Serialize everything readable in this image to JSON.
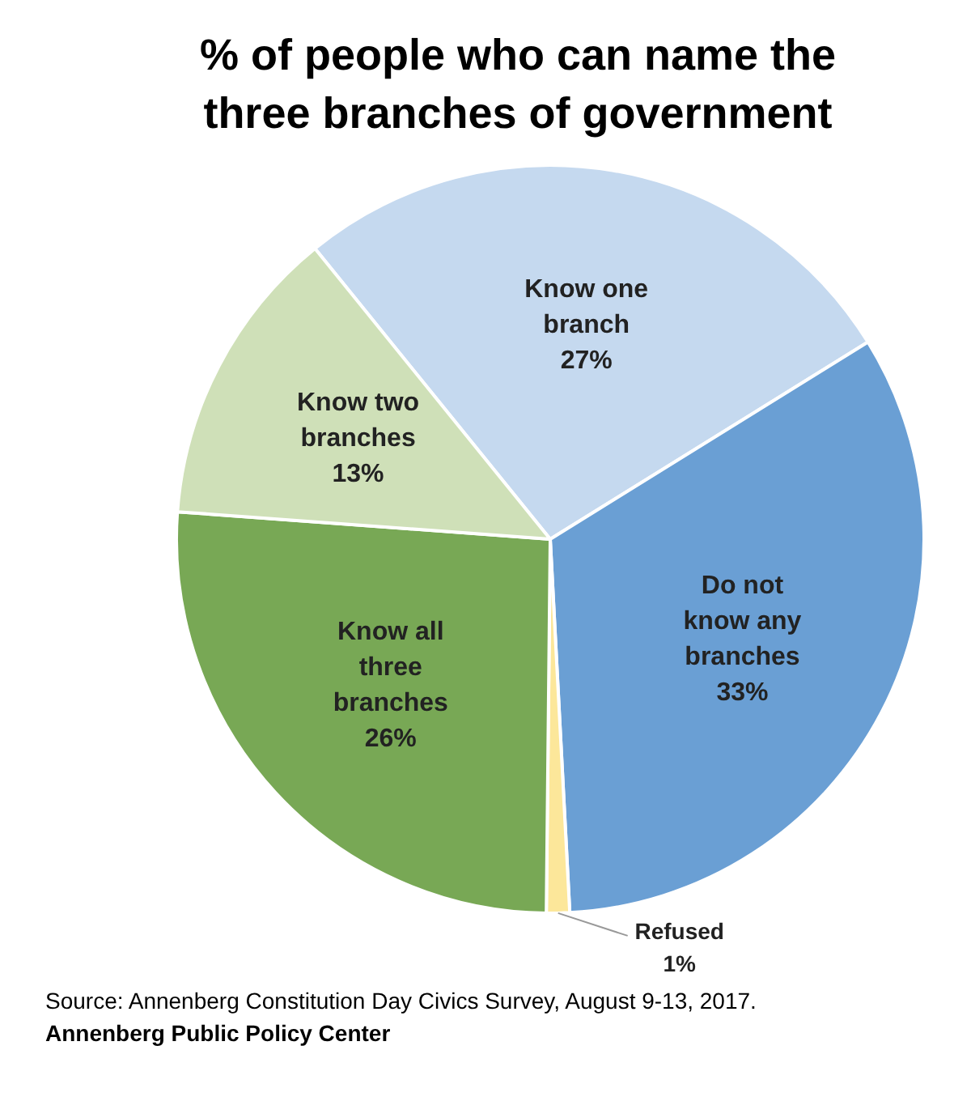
{
  "chart_data": {
    "type": "pie",
    "title": "% of people who can name the three branches of government",
    "categories": [
      "Know one branch",
      "Do not know any branches",
      "Refused",
      "Know all three branches",
      "Know two branches"
    ],
    "values": [
      27,
      33,
      1,
      26,
      13
    ],
    "value_labels": [
      "27%",
      "33%",
      "1%",
      "26%",
      "13%"
    ],
    "colors": [
      "#c5d9ef",
      "#6a9fd4",
      "#fce79a",
      "#78a855",
      "#cfe0b8"
    ],
    "legend": false,
    "annotations": [
      "Source: Annenberg Constitution Day Civics Survey, August 9-13, 2017.",
      "Annenberg Public Policy Center"
    ]
  }
}
